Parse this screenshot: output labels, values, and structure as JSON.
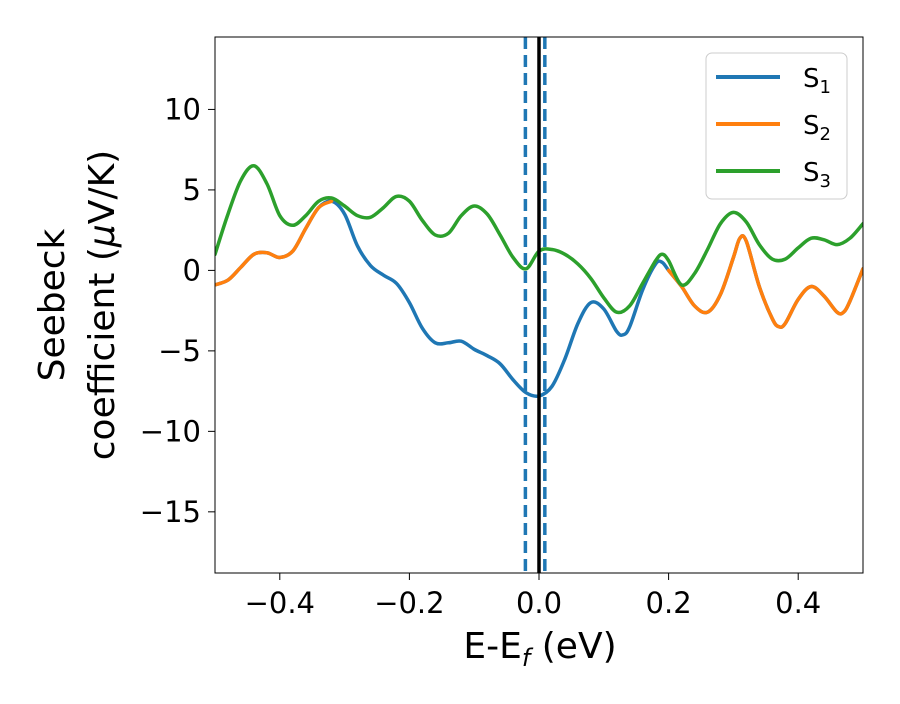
{
  "chart_data": {
    "type": "line",
    "xlabel": {
      "main": "E-E",
      "sub": "f",
      "suffix": " (eV)"
    },
    "ylabel": {
      "line1": "Seebeck",
      "line2_prefix": "coefficient  (",
      "mu": "μ",
      "line2_suffix": "V/K)"
    },
    "xlim": [
      -0.5,
      0.5
    ],
    "ylim": [
      -18.8,
      14.5
    ],
    "xticks": [
      -0.4,
      -0.2,
      0.0,
      0.2,
      0.4
    ],
    "xtick_labels": [
      "−0.4",
      "−0.2",
      "0.0",
      "0.2",
      "0.4"
    ],
    "yticks": [
      10,
      5,
      0,
      -5,
      -10,
      -15
    ],
    "ytick_labels": [
      "10",
      "5",
      "0",
      "−5",
      "−10",
      "−15"
    ],
    "legend_position": "top-right",
    "vlines": [
      {
        "x": -0.021,
        "style": "dashed",
        "color": "#1f77b4"
      },
      {
        "x": 0.009,
        "style": "dashed",
        "color": "#1f77b4"
      },
      {
        "x": 0.0,
        "style": "solid",
        "color": "#000000"
      }
    ],
    "series": [
      {
        "name": "S",
        "sub": "1",
        "color": "#1f77b4",
        "points": [
          [
            -0.5,
            -0.9
          ],
          [
            -0.48,
            -0.6
          ],
          [
            -0.46,
            0.2
          ],
          [
            -0.44,
            1.0
          ],
          [
            -0.42,
            1.1
          ],
          [
            -0.4,
            0.8
          ],
          [
            -0.38,
            1.2
          ],
          [
            -0.36,
            2.6
          ],
          [
            -0.34,
            3.9
          ],
          [
            -0.32,
            4.3
          ],
          [
            -0.3,
            3.5
          ],
          [
            -0.28,
            1.5
          ],
          [
            -0.26,
            0.3
          ],
          [
            -0.24,
            -0.3
          ],
          [
            -0.22,
            -0.8
          ],
          [
            -0.2,
            -2.0
          ],
          [
            -0.18,
            -3.6
          ],
          [
            -0.16,
            -4.5
          ],
          [
            -0.14,
            -4.5
          ],
          [
            -0.12,
            -4.4
          ],
          [
            -0.1,
            -4.9
          ],
          [
            -0.08,
            -5.3
          ],
          [
            -0.06,
            -5.8
          ],
          [
            -0.04,
            -6.8
          ],
          [
            -0.02,
            -7.6
          ],
          [
            0.0,
            -7.8
          ],
          [
            0.02,
            -7.2
          ],
          [
            0.04,
            -5.5
          ],
          [
            0.06,
            -3.3
          ],
          [
            0.08,
            -2.0
          ],
          [
            0.1,
            -2.4
          ],
          [
            0.12,
            -3.8
          ],
          [
            0.13,
            -4.0
          ],
          [
            0.14,
            -3.5
          ],
          [
            0.16,
            -1.2
          ],
          [
            0.18,
            0.4
          ],
          [
            0.19,
            0.5
          ],
          [
            0.2,
            0.0
          ],
          [
            0.22,
            -1.0
          ],
          [
            0.24,
            -2.2
          ],
          [
            0.26,
            -2.6
          ],
          [
            0.28,
            -1.5
          ],
          [
            0.3,
            0.8
          ],
          [
            0.31,
            2.0
          ],
          [
            0.32,
            1.8
          ],
          [
            0.34,
            -1.0
          ],
          [
            0.36,
            -3.0
          ],
          [
            0.37,
            -3.5
          ],
          [
            0.38,
            -3.3
          ],
          [
            0.4,
            -1.8
          ],
          [
            0.42,
            -1.0
          ],
          [
            0.44,
            -1.6
          ],
          [
            0.46,
            -2.6
          ],
          [
            0.47,
            -2.6
          ],
          [
            0.48,
            -1.9
          ],
          [
            0.5,
            0.1
          ]
        ]
      },
      {
        "name": "S",
        "sub": "2",
        "color": "#ff7f0e",
        "points": [
          [
            -0.5,
            -0.9
          ],
          [
            -0.48,
            -0.6
          ],
          [
            -0.46,
            0.2
          ],
          [
            -0.44,
            1.0
          ],
          [
            -0.42,
            1.1
          ],
          [
            -0.4,
            0.8
          ],
          [
            -0.38,
            1.2
          ],
          [
            -0.36,
            2.6
          ],
          [
            -0.34,
            3.9
          ],
          [
            -0.32,
            4.3
          ],
          [
            0.2,
            0.0
          ],
          [
            0.22,
            -1.0
          ],
          [
            0.24,
            -2.2
          ],
          [
            0.26,
            -2.6
          ],
          [
            0.28,
            -1.5
          ],
          [
            0.3,
            0.8
          ],
          [
            0.31,
            2.0
          ],
          [
            0.32,
            1.8
          ],
          [
            0.34,
            -1.0
          ],
          [
            0.36,
            -3.0
          ],
          [
            0.37,
            -3.5
          ],
          [
            0.38,
            -3.3
          ],
          [
            0.4,
            -1.8
          ],
          [
            0.42,
            -1.0
          ],
          [
            0.44,
            -1.6
          ],
          [
            0.46,
            -2.6
          ],
          [
            0.47,
            -2.6
          ],
          [
            0.48,
            -1.9
          ],
          [
            0.5,
            0.1
          ]
        ],
        "gap_after_index": 9
      },
      {
        "name": "S",
        "sub": "3",
        "color": "#2ca02c",
        "points": [
          [
            -0.5,
            1.0
          ],
          [
            -0.48,
            3.5
          ],
          [
            -0.46,
            5.6
          ],
          [
            -0.44,
            6.5
          ],
          [
            -0.42,
            5.4
          ],
          [
            -0.4,
            3.4
          ],
          [
            -0.38,
            2.8
          ],
          [
            -0.36,
            3.4
          ],
          [
            -0.34,
            4.3
          ],
          [
            -0.32,
            4.5
          ],
          [
            -0.3,
            4.0
          ],
          [
            -0.28,
            3.4
          ],
          [
            -0.26,
            3.3
          ],
          [
            -0.24,
            3.9
          ],
          [
            -0.22,
            4.6
          ],
          [
            -0.2,
            4.3
          ],
          [
            -0.18,
            3.1
          ],
          [
            -0.16,
            2.2
          ],
          [
            -0.14,
            2.3
          ],
          [
            -0.12,
            3.4
          ],
          [
            -0.1,
            4.0
          ],
          [
            -0.08,
            3.5
          ],
          [
            -0.06,
            2.2
          ],
          [
            -0.04,
            0.8
          ],
          [
            -0.02,
            0.1
          ],
          [
            0.0,
            1.2
          ],
          [
            0.02,
            1.3
          ],
          [
            0.04,
            1.0
          ],
          [
            0.06,
            0.4
          ],
          [
            0.08,
            -0.5
          ],
          [
            0.1,
            -1.7
          ],
          [
            0.12,
            -2.6
          ],
          [
            0.14,
            -2.2
          ],
          [
            0.16,
            -0.8
          ],
          [
            0.18,
            0.6
          ],
          [
            0.19,
            1.0
          ],
          [
            0.2,
            0.6
          ],
          [
            0.22,
            -0.9
          ],
          [
            0.24,
            -0.2
          ],
          [
            0.26,
            1.3
          ],
          [
            0.28,
            2.9
          ],
          [
            0.3,
            3.6
          ],
          [
            0.32,
            3.0
          ],
          [
            0.34,
            1.6
          ],
          [
            0.36,
            0.7
          ],
          [
            0.38,
            0.7
          ],
          [
            0.4,
            1.4
          ],
          [
            0.42,
            2.0
          ],
          [
            0.44,
            1.9
          ],
          [
            0.46,
            1.6
          ],
          [
            0.48,
            2.0
          ],
          [
            0.5,
            2.9
          ]
        ]
      }
    ]
  }
}
